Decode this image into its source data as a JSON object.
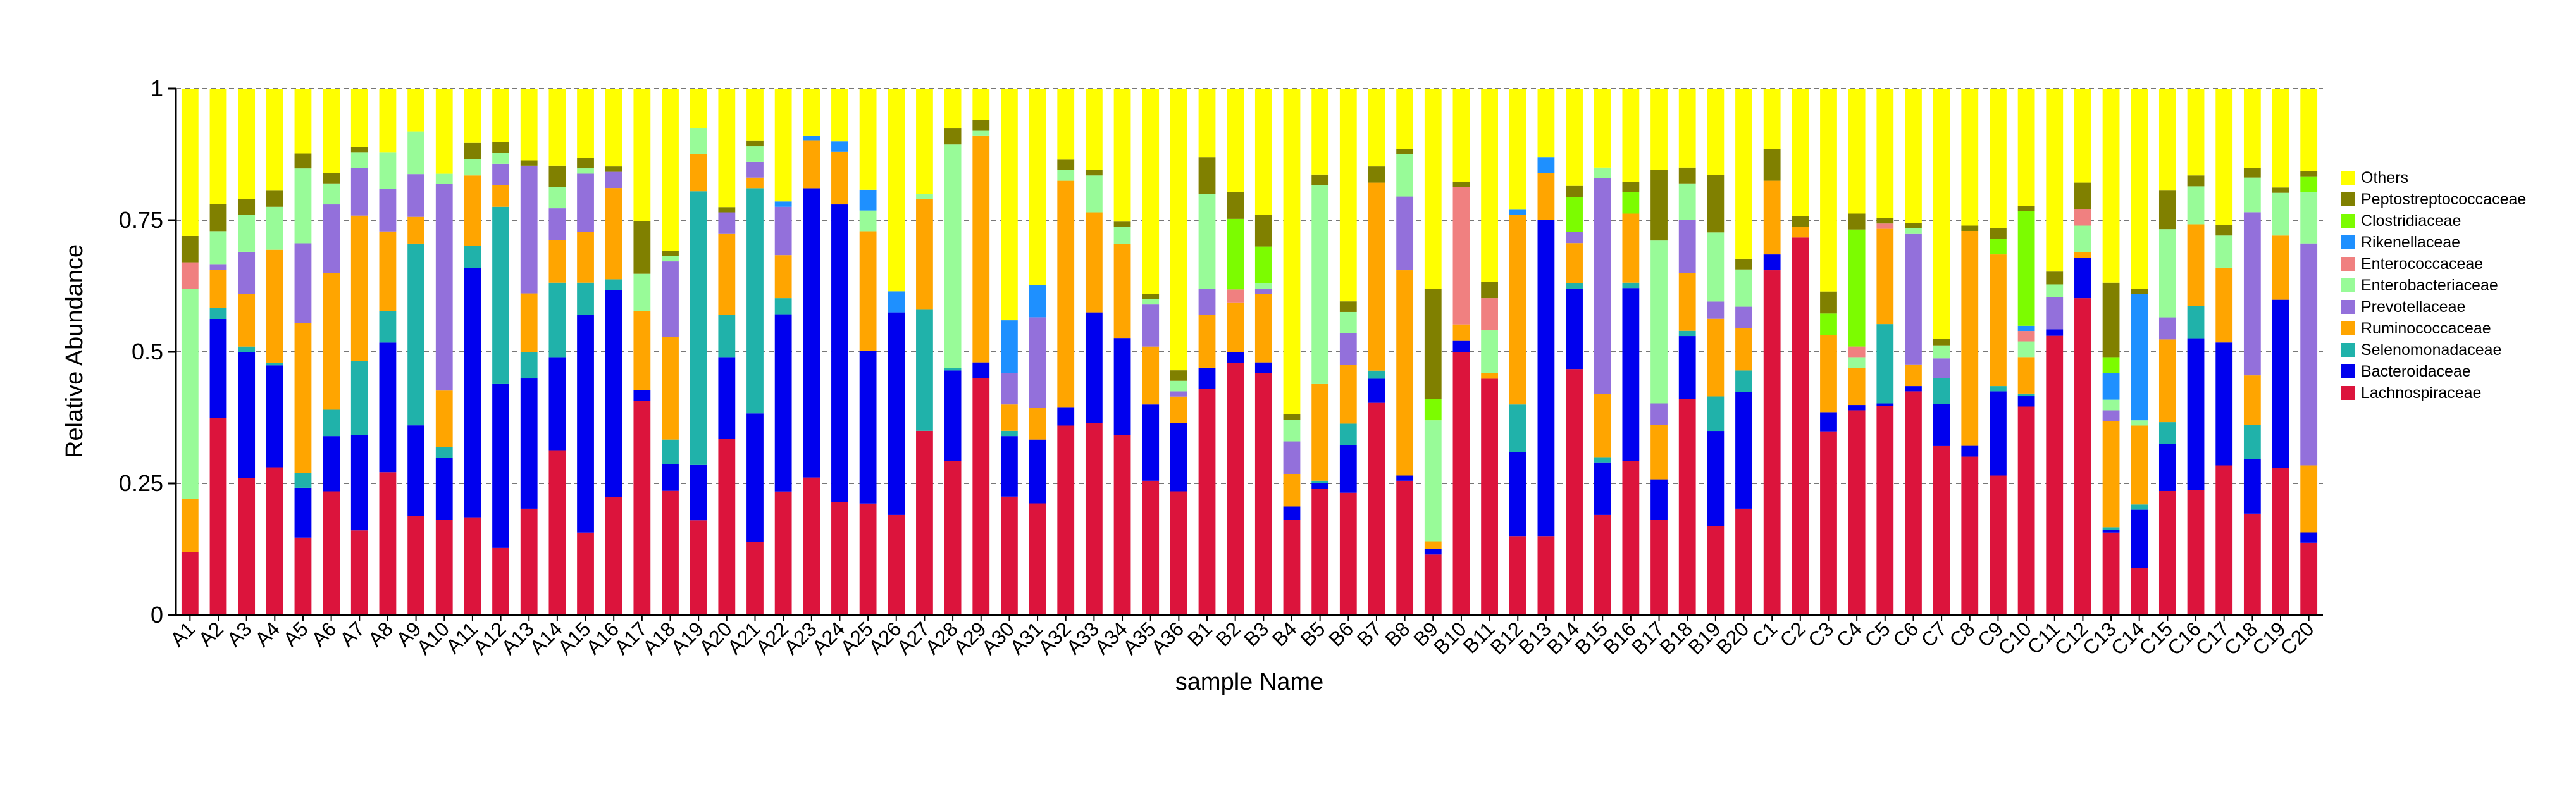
{
  "chart_data": {
    "type": "bar",
    "stacked": true,
    "xlabel": "sample Name",
    "ylabel": "Relative Abundance",
    "ylim": [
      0,
      1
    ],
    "yticks": [
      0,
      0.25,
      0.5,
      0.75,
      1
    ],
    "ytick_labels": [
      "0",
      "0.25",
      "0.5",
      "0.75",
      "1"
    ],
    "grid": "horizontal dashed at y ticks",
    "legend_position": "right",
    "categories": [
      "A1",
      "A2",
      "A3",
      "A4",
      "A5",
      "A6",
      "A7",
      "A8",
      "A9",
      "A10",
      "A11",
      "A12",
      "A13",
      "A14",
      "A15",
      "A16",
      "A17",
      "A18",
      "A19",
      "A20",
      "A21",
      "A22",
      "A23",
      "A24",
      "A25",
      "A26",
      "A27",
      "A28",
      "A29",
      "A30",
      "A31",
      "A32",
      "A33",
      "A34",
      "A35",
      "A36",
      "B1",
      "B2",
      "B3",
      "B4",
      "B5",
      "B6",
      "B7",
      "B8",
      "B9",
      "B10",
      "B11",
      "B12",
      "B13",
      "B14",
      "B15",
      "B16",
      "B17",
      "B18",
      "B19",
      "B20",
      "C1",
      "C2",
      "C3",
      "C4",
      "C5",
      "C6",
      "C7",
      "C8",
      "C9",
      "C10",
      "C11",
      "C12",
      "C13",
      "C14",
      "C15",
      "C16",
      "C17",
      "C18",
      "C19",
      "C20"
    ],
    "series": [
      {
        "name": "Lachnospiraceae",
        "color": "#DC143C",
        "values": [
          0.12,
          0.36,
          0.26,
          0.275,
          0.155,
          0.235,
          0.16,
          0.27,
          0.185,
          0.185,
          0.18,
          0.125,
          0.2,
          0.31,
          0.155,
          0.22,
          0.405,
          0.23,
          0.18,
          0.335,
          0.14,
          0.23,
          0.29,
          0.215,
          0.215,
          0.19,
          0.35,
          0.29,
          0.45,
          0.225,
          0.21,
          0.36,
          0.365,
          0.325,
          0.255,
          0.235,
          0.43,
          0.465,
          0.46,
          0.175,
          0.235,
          0.23,
          0.395,
          0.255,
          0.115,
          0.48,
          0.44,
          0.15,
          0.15,
          0.43,
          0.19,
          0.29,
          0.175,
          0.41,
          0.155,
          0.2,
          0.655,
          0.71,
          0.335,
          0.385,
          0.395,
          0.425,
          0.26,
          0.295,
          0.265,
          0.4,
          0.435,
          0.59,
          0.155,
          0.09,
          0.225,
          0.23,
          0.28,
          0.205,
          0.275,
          0.14
        ]
      },
      {
        "name": "Bacteroidaceae",
        "color": "#0000EE",
        "values": [
          0,
          0.18,
          0.24,
          0.19,
          0.1,
          0.105,
          0.18,
          0.245,
          0.17,
          0.12,
          0.46,
          0.305,
          0.245,
          0.175,
          0.41,
          0.385,
          0.02,
          0.05,
          0.105,
          0.155,
          0.245,
          0.33,
          0.61,
          0.565,
          0.295,
          0.385,
          0,
          0.17,
          0.03,
          0.115,
          0.12,
          0.035,
          0.21,
          0.175,
          0.145,
          0.13,
          0.04,
          0.02,
          0.02,
          0.025,
          0.01,
          0.09,
          0.045,
          0.01,
          0.01,
          0.02,
          0,
          0.16,
          0.6,
          0.14,
          0.1,
          0.325,
          0.075,
          0.12,
          0.165,
          0.22,
          0.03,
          0,
          0.035,
          0.01,
          0.005,
          0.01,
          0.065,
          0.02,
          0.16,
          0.02,
          0.01,
          0.075,
          0.005,
          0.11,
          0.085,
          0.28,
          0.23,
          0.11,
          0.315,
          0.02
        ]
      },
      {
        "name": "Selenomonadaceae",
        "color": "#20B2AA",
        "values": [
          0,
          0.02,
          0.01,
          0.005,
          0.03,
          0.05,
          0.14,
          0.06,
          0.34,
          0.02,
          0.04,
          0.33,
          0.05,
          0.14,
          0.06,
          0.02,
          0,
          0.045,
          0.52,
          0.08,
          0.43,
          0.03,
          0,
          0,
          0,
          0,
          0.23,
          0.005,
          0,
          0.01,
          0,
          0,
          0,
          0,
          0,
          0,
          0,
          0,
          0,
          0,
          0.005,
          0.04,
          0.015,
          0,
          0,
          0,
          0,
          0.09,
          0,
          0.01,
          0.01,
          0.01,
          0,
          0.01,
          0.06,
          0.04,
          0,
          0,
          0,
          0,
          0.15,
          0,
          0.04,
          0,
          0.01,
          0.005,
          0,
          0,
          0.005,
          0.01,
          0.04,
          0.06,
          0,
          0.07,
          0,
          0
        ]
      },
      {
        "name": "Ruminococcaceae",
        "color": "#FFA500",
        "values": [
          0.1,
          0.07,
          0.1,
          0.21,
          0.3,
          0.26,
          0.275,
          0.15,
          0.05,
          0.11,
          0.13,
          0.04,
          0.11,
          0.08,
          0.095,
          0.17,
          0.15,
          0.19,
          0.07,
          0.155,
          0.02,
          0.08,
          0.1,
          0.1,
          0.23,
          0,
          0.21,
          0,
          0.43,
          0.05,
          0.06,
          0.43,
          0.19,
          0.17,
          0.11,
          0.05,
          0.1,
          0.09,
          0.13,
          0.06,
          0.18,
          0.11,
          0.35,
          0.39,
          0.015,
          0.03,
          0.01,
          0.36,
          0.09,
          0.07,
          0.12,
          0.13,
          0.1,
          0.11,
          0.135,
          0.08,
          0.14,
          0.02,
          0.14,
          0.07,
          0.18,
          0.04,
          0,
          0.4,
          0.25,
          0.07,
          0,
          0.01,
          0.2,
          0.15,
          0.15,
          0.15,
          0.14,
          0.1,
          0.12,
          0.13
        ]
      },
      {
        "name": "Prevotellaceae",
        "color": "#9370DB",
        "values": [
          0,
          0.01,
          0.08,
          0,
          0.16,
          0.13,
          0.09,
          0.08,
          0.08,
          0.4,
          0,
          0.04,
          0.24,
          0.06,
          0.11,
          0.03,
          0,
          0.14,
          0,
          0.04,
          0.03,
          0.09,
          0,
          0,
          0,
          0,
          0,
          0,
          0,
          0.06,
          0.17,
          0,
          0,
          0,
          0.08,
          0.01,
          0.05,
          0,
          0.01,
          0.06,
          0,
          0.06,
          0,
          0.14,
          0,
          0,
          0,
          0,
          0,
          0.02,
          0.41,
          0,
          0.04,
          0.1,
          0.03,
          0.04,
          0,
          0,
          0,
          0,
          0,
          0.25,
          0.03,
          0,
          0,
          0,
          0.05,
          0,
          0.02,
          0,
          0.04,
          0,
          0,
          0.33,
          0,
          0.43
        ]
      },
      {
        "name": "Enterobacteriaceae",
        "color": "#98FB98",
        "values": [
          0.4,
          0.06,
          0.07,
          0.08,
          0.15,
          0.04,
          0.03,
          0.07,
          0.08,
          0.02,
          0.03,
          0.02,
          0,
          0.04,
          0.01,
          0,
          0.07,
          0.01,
          0.05,
          0,
          0.03,
          0,
          0,
          0,
          0.04,
          0,
          0.01,
          0.42,
          0.01,
          0,
          0,
          0.02,
          0.07,
          0.03,
          0.01,
          0.02,
          0.18,
          0,
          0.01,
          0.04,
          0.37,
          0.04,
          0,
          0.08,
          0.23,
          0,
          0.08,
          0,
          0,
          0,
          0.02,
          0,
          0.3,
          0.07,
          0.12,
          0.07,
          0,
          0,
          0,
          0.02,
          0,
          0.01,
          0.02,
          0,
          0,
          0.03,
          0.02,
          0.05,
          0.02,
          0.01,
          0.16,
          0.07,
          0.06,
          0.07,
          0.08,
          0.1
        ]
      },
      {
        "name": "Enterococcaceae",
        "color": "#F08080",
        "values": [
          0.05,
          0,
          0,
          0,
          0,
          0,
          0,
          0,
          0,
          0,
          0,
          0,
          0,
          0,
          0,
          0,
          0,
          0,
          0,
          0,
          0,
          0,
          0,
          0,
          0,
          0,
          0,
          0,
          0,
          0,
          0,
          0,
          0,
          0,
          0,
          0,
          0,
          0.025,
          0,
          0,
          0,
          0,
          0,
          0,
          0,
          0.25,
          0.06,
          0,
          0,
          0,
          0,
          0,
          0,
          0,
          0,
          0,
          0,
          0,
          0,
          0.02,
          0.01,
          0,
          0,
          0,
          0,
          0.02,
          0,
          0.03,
          0,
          0,
          0,
          0,
          0,
          0,
          0,
          0
        ]
      },
      {
        "name": "Rikenellaceae",
        "color": "#1E90FF",
        "values": [
          0,
          0,
          0,
          0,
          0,
          0,
          0,
          0,
          0,
          0,
          0,
          0,
          0,
          0,
          0,
          0,
          0,
          0,
          0,
          0,
          0,
          0.01,
          0.01,
          0.02,
          0.04,
          0.04,
          0,
          0,
          0,
          0.1,
          0.06,
          0,
          0,
          0,
          0,
          0,
          0,
          0,
          0,
          0,
          0,
          0,
          0,
          0,
          0,
          0,
          0,
          0.01,
          0.03,
          0,
          0,
          0,
          0,
          0,
          0,
          0,
          0,
          0,
          0,
          0,
          0,
          0,
          0,
          0,
          0,
          0.01,
          0,
          0,
          0.05,
          0.24,
          0,
          0,
          0,
          0,
          0,
          0
        ]
      },
      {
        "name": "Clostridiaceae",
        "color": "#7CFC00",
        "values": [
          0,
          0,
          0,
          0,
          0,
          0,
          0,
          0,
          0,
          0,
          0,
          0,
          0,
          0,
          0,
          0,
          0,
          0,
          0,
          0,
          0,
          0,
          0,
          0,
          0,
          0,
          0,
          0,
          0,
          0,
          0,
          0,
          0,
          0,
          0,
          0,
          0,
          0.13,
          0.07,
          0,
          0,
          0,
          0,
          0,
          0.04,
          0,
          0,
          0,
          0,
          0.06,
          0,
          0.04,
          0,
          0,
          0,
          0,
          0,
          0,
          0.04,
          0.22,
          0,
          0,
          0,
          0,
          0.03,
          0.22,
          0,
          0,
          0.03,
          0,
          0,
          0,
          0,
          0,
          0,
          0.03
        ]
      },
      {
        "name": "Peptostreptococcaceae",
        "color": "#808000",
        "values": [
          0.05,
          0.05,
          0.03,
          0.03,
          0.03,
          0.02,
          0.01,
          0,
          0,
          0,
          0.03,
          0.02,
          0.01,
          0.04,
          0.02,
          0.01,
          0.1,
          0.01,
          0,
          0.01,
          0.01,
          0,
          0,
          0,
          0,
          0,
          0,
          0.03,
          0.02,
          0,
          0,
          0.02,
          0.01,
          0.01,
          0.01,
          0.02,
          0.07,
          0.05,
          0.06,
          0.01,
          0.02,
          0.02,
          0.03,
          0.01,
          0.21,
          0.01,
          0.03,
          0,
          0,
          0.02,
          0,
          0.02,
          0.13,
          0.03,
          0.1,
          0.02,
          0.06,
          0.02,
          0.04,
          0.03,
          0.01,
          0.01,
          0.01,
          0.01,
          0.02,
          0.01,
          0.02,
          0.05,
          0.14,
          0.01,
          0.07,
          0.02,
          0.02,
          0.02,
          0.01,
          0.01
        ]
      },
      {
        "name": "Others",
        "color": "#FFFF00",
        "values": [
          0.28,
          0.21,
          0.21,
          0.19,
          0.13,
          0.16,
          0.11,
          0.12,
          0.08,
          0.165,
          0.1,
          0.1,
          0.135,
          0.145,
          0.13,
          0.145,
          0.25,
          0.3,
          0.075,
          0.225,
          0.1,
          0.21,
          0.1,
          0.1,
          0.195,
          0.385,
          0.2,
          0.075,
          0.06,
          0.44,
          0.37,
          0.135,
          0.155,
          0.24,
          0.39,
          0.535,
          0.13,
          0.19,
          0.24,
          0.6,
          0.16,
          0.4,
          0.145,
          0.115,
          0.38,
          0.17,
          0.36,
          0.23,
          0.13,
          0.17,
          0.15,
          0.175,
          0.15,
          0.15,
          0.15,
          0.32,
          0.115,
          0.24,
          0.37,
          0.235,
          0.245,
          0.255,
          0.385,
          0.255,
          0.265,
          0.225,
          0.285,
          0.175,
          0.365,
          0.38,
          0.185,
          0.16,
          0.255,
          0.16,
          0.185,
          0.16
        ]
      }
    ]
  }
}
